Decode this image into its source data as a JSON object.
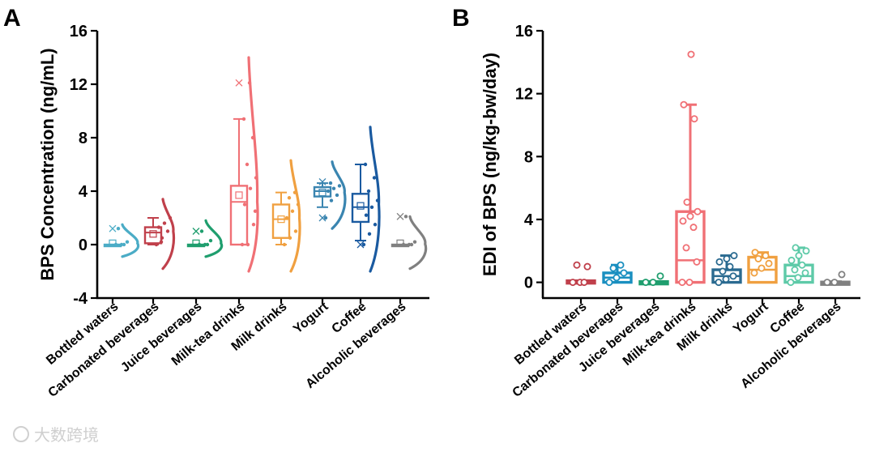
{
  "chart_data": [
    {
      "panel": "A",
      "type": "box-violin",
      "ylabel": "BPS Concentration (ng/mL)",
      "ylim": [
        -4,
        16
      ],
      "yticks": [
        -4,
        0,
        4,
        8,
        12,
        16
      ],
      "categories": [
        "Bottled waters",
        "Carbonated beverages",
        "Juice beverages",
        "Milk-tea drinks",
        "Milk drinks",
        "Yogurt",
        "Coffee",
        "Alcoholic beverages"
      ],
      "colors": [
        "#4bacc6",
        "#c0404b",
        "#1f9e6e",
        "#f07075",
        "#f0a040",
        "#3a85b0",
        "#1a5aa0",
        "#808080"
      ],
      "boxes": [
        {
          "min": 0,
          "q1": 0,
          "median": 0,
          "q3": 0,
          "max": 0,
          "mean": 0.1,
          "outliers": [
            1.2
          ]
        },
        {
          "min": 0,
          "q1": 0.1,
          "median": 0.9,
          "q3": 1.3,
          "max": 2.0,
          "mean": 0.8,
          "outliers": []
        },
        {
          "min": 0,
          "q1": 0,
          "median": 0,
          "q3": 0,
          "max": 0,
          "mean": 0.1,
          "outliers": [
            1.0
          ]
        },
        {
          "min": 0,
          "q1": 0,
          "median": 3.2,
          "q3": 4.4,
          "max": 9.4,
          "mean": 3.7,
          "outliers": [
            12.1
          ]
        },
        {
          "min": 0,
          "q1": 0.5,
          "median": 1.9,
          "q3": 3.0,
          "max": 3.9,
          "mean": 1.9,
          "outliers": []
        },
        {
          "min": 2.8,
          "q1": 3.6,
          "median": 4.0,
          "q3": 4.3,
          "max": 4.6,
          "mean": 3.9,
          "outliers": [
            2.0,
            4.7
          ]
        },
        {
          "min": 0.3,
          "q1": 1.7,
          "median": 2.8,
          "q3": 3.8,
          "max": 6.0,
          "mean": 2.9,
          "outliers": [
            0.0
          ]
        },
        {
          "min": 0,
          "q1": 0,
          "median": 0,
          "q3": 0,
          "max": 0,
          "mean": 0.1,
          "outliers": [
            2.1
          ]
        }
      ],
      "points": [
        [
          0,
          0,
          0.2,
          1.2,
          0
        ],
        [
          0,
          0.5,
          1.0,
          1.3,
          1.6,
          2.0,
          0.2
        ],
        [
          0,
          0,
          0.3,
          1.0,
          0
        ],
        [
          0,
          0,
          1.5,
          3.0,
          4.2,
          5.0,
          6.0,
          8.0,
          9.4,
          12.1,
          2.5
        ],
        [
          0,
          0.5,
          1.0,
          2.0,
          2.5,
          3.0,
          3.5,
          3.9
        ],
        [
          2.0,
          3.3,
          3.7,
          4.0,
          4.2,
          4.4,
          4.6
        ],
        [
          0,
          0.8,
          1.5,
          2.2,
          2.8,
          3.3,
          4.0,
          5.0,
          6.0
        ],
        [
          0,
          0,
          0.2,
          2.1,
          0
        ]
      ],
      "violins": [
        {
          "ymin": -0.9,
          "ymax": 1.5,
          "center": 0.1,
          "width": 0.8
        },
        {
          "ymin": -1.8,
          "ymax": 3.4,
          "center": 1.0,
          "width": 0.55
        },
        {
          "ymin": -0.9,
          "ymax": 1.8,
          "center": 0.1,
          "width": 0.8
        },
        {
          "ymin": -2.0,
          "ymax": 14.0,
          "center": 3.2,
          "width": 0.45
        },
        {
          "ymin": -2.0,
          "ymax": 6.3,
          "center": 2.0,
          "width": 0.45
        },
        {
          "ymin": 1.2,
          "ymax": 6.2,
          "center": 3.9,
          "width": 0.65
        },
        {
          "ymin": -2.0,
          "ymax": 8.8,
          "center": 3.0,
          "width": 0.45
        },
        {
          "ymin": -1.8,
          "ymax": 2.1,
          "center": 0.05,
          "width": 0.8
        }
      ]
    },
    {
      "panel": "B",
      "type": "box",
      "ylabel": "EDI of BPS (ng/kg-bw/day)",
      "ylim": [
        -1,
        16
      ],
      "yticks": [
        0,
        4,
        8,
        12,
        16
      ],
      "categories": [
        "Bottled waters",
        "Carbonated beverages",
        "Juice beverages",
        "Milk-tea drinks",
        "Milk drinks",
        "Yogurt",
        "Coffee",
        "Alcoholic beverages"
      ],
      "colors": [
        "#c0404b",
        "#1a8fc0",
        "#1f9e6e",
        "#f07075",
        "#2a6a90",
        "#f0a040",
        "#5ecaa8",
        "#808080"
      ],
      "boxes": [
        {
          "min": 0,
          "q1": 0,
          "median": 0,
          "q3": 0.1,
          "max": 0.1
        },
        {
          "min": 0,
          "q1": 0,
          "median": 0.3,
          "q3": 0.6,
          "max": 1.1
        },
        {
          "min": 0,
          "q1": 0,
          "median": 0,
          "q3": 0.05,
          "max": 0.05
        },
        {
          "min": 0,
          "q1": 0,
          "median": 1.4,
          "q3": 4.5,
          "max": 11.3
        },
        {
          "min": 0,
          "q1": 0,
          "median": 0.4,
          "q3": 0.8,
          "max": 1.7
        },
        {
          "min": 0,
          "q1": 0,
          "median": 0.8,
          "q3": 1.6,
          "max": 1.9
        },
        {
          "min": 0,
          "q1": 0,
          "median": 0.4,
          "q3": 1.1,
          "max": 2.2
        },
        {
          "min": 0,
          "q1": 0,
          "median": 0,
          "q3": 0.02,
          "max": 0.05
        }
      ],
      "points": [
        [
          0,
          0,
          1.0,
          1.1,
          0
        ],
        [
          0,
          0.3,
          0.6,
          0.9,
          1.1
        ],
        [
          0,
          0,
          0.4
        ],
        [
          0,
          0,
          1.3,
          2.2,
          3.5,
          3.9,
          4.2,
          4.5,
          5.1,
          10.4,
          11.3,
          14.5
        ],
        [
          0,
          0.2,
          0.4,
          0.7,
          1.0,
          1.3,
          1.5,
          1.7
        ],
        [
          0.6,
          0.9,
          1.2,
          1.5,
          1.7,
          1.9
        ],
        [
          0,
          0.3,
          0.6,
          0.8,
          1.1,
          1.4,
          1.7,
          2.0,
          2.2
        ],
        [
          0,
          0,
          0.5
        ]
      ]
    }
  ],
  "watermark": "大数跨境"
}
